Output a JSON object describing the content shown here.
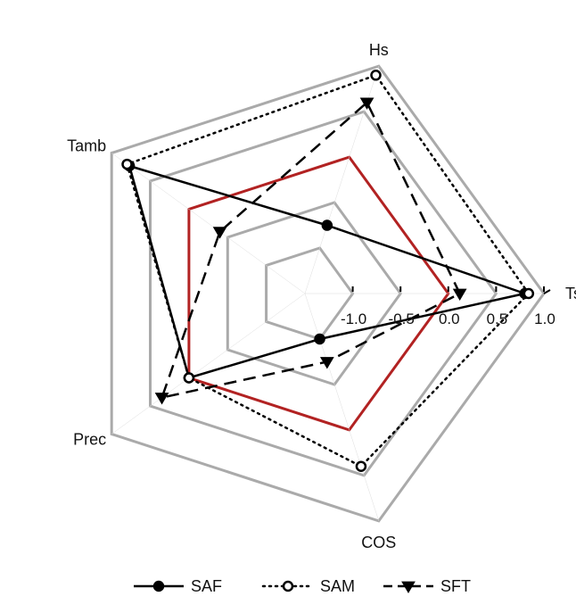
{
  "chart_data": {
    "type": "radar",
    "axes": [
      "Ts",
      "Hs",
      "Tamb",
      "Prec",
      "COS"
    ],
    "radial_range": [
      -1.5,
      1.0
    ],
    "radial_ticks": [
      -1.0,
      -0.5,
      0.0,
      0.5,
      1.0
    ],
    "radial_tick_labels": [
      "-1.0",
      "-0.5",
      "0.0",
      "0.5",
      "1.0"
    ],
    "reference_rings": [
      {
        "value": -1.0,
        "color": "#aaaaaa"
      },
      {
        "value": -0.5,
        "color": "#aaaaaa"
      },
      {
        "value": 0.0,
        "color": "#b22222"
      },
      {
        "value": 0.5,
        "color": "#aaaaaa"
      },
      {
        "value": 1.0,
        "color": "#aaaaaa"
      }
    ],
    "series": [
      {
        "name": "SAF",
        "style": "solid",
        "marker": "filled-circle",
        "color": "#000000",
        "values": [
          0.8,
          -0.75,
          0.77,
          0.0,
          -1.0
        ]
      },
      {
        "name": "SAM",
        "style": "dotted",
        "marker": "open-circle",
        "color": "#000000",
        "values": [
          0.84,
          0.9,
          0.8,
          0.0,
          0.4
        ]
      },
      {
        "name": "SFT",
        "style": "dashed",
        "marker": "filled-triangle-down",
        "color": "#000000",
        "values": [
          0.12,
          0.6,
          -0.4,
          0.35,
          -0.75
        ]
      }
    ],
    "legend_position": "bottom",
    "grid": false
  }
}
